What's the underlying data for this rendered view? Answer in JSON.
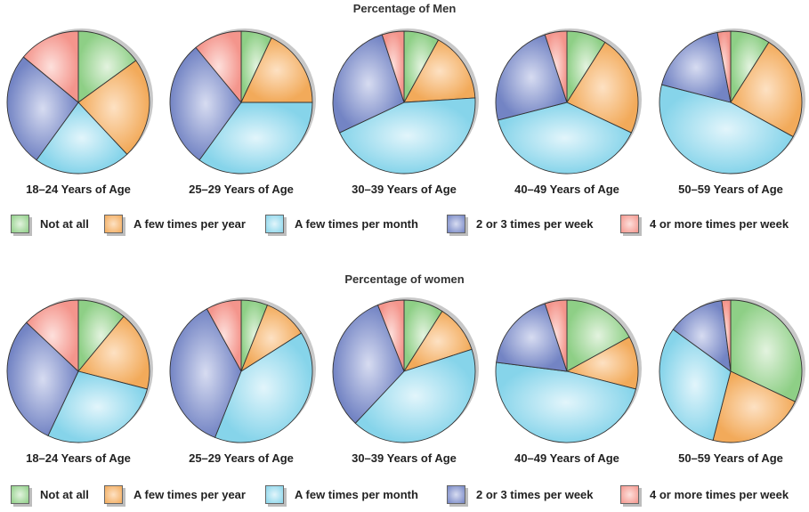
{
  "legend": [
    {
      "label": "Not at all",
      "color": "#8ecf86",
      "edge": "#e3f3df"
    },
    {
      "label": "A few times per year",
      "color": "#f2aa5a",
      "edge": "#fde1c3"
    },
    {
      "label": "A few times per month",
      "color": "#86d4ea",
      "edge": "#e2f5fb"
    },
    {
      "label": "2 or 3 times per week",
      "color": "#7384c4",
      "edge": "#d7dcf1"
    },
    {
      "label": "4 or more times per week",
      "color": "#f4958c",
      "edge": "#fde0dc"
    }
  ],
  "chart_data": [
    {
      "type": "pie",
      "title": "Percentage of Men",
      "legend": [
        "Not at all",
        "A few times per year",
        "A few times per month",
        "2 or 3 times per week",
        "4 or more times per week"
      ],
      "pies": [
        {
          "label": "18–24 Years of Age",
          "values": [
            15,
            23,
            22,
            26,
            14
          ]
        },
        {
          "label": "25–29 Years of Age",
          "values": [
            7,
            18,
            35,
            29,
            11
          ]
        },
        {
          "label": "30–39 Years of Age",
          "values": [
            8,
            16,
            44,
            27,
            5
          ]
        },
        {
          "label": "40–49 Years of Age",
          "values": [
            9,
            23,
            39,
            24,
            5
          ]
        },
        {
          "label": "50–59 Years of Age",
          "values": [
            9,
            24,
            46,
            18,
            3
          ]
        }
      ]
    },
    {
      "type": "pie",
      "title": "Percentage of women",
      "legend": [
        "Not at all",
        "A few times per year",
        "A few times per month",
        "2 or 3 times per week",
        "4 or more times per week"
      ],
      "pies": [
        {
          "label": "18–24 Years of Age",
          "values": [
            11,
            18,
            28,
            30,
            13
          ]
        },
        {
          "label": "25–29 Years of Age",
          "values": [
            6,
            10,
            40,
            36,
            8
          ]
        },
        {
          "label": "30–39 Years of Age",
          "values": [
            9,
            11,
            42,
            32,
            6
          ]
        },
        {
          "label": "40–49 Years of Age",
          "values": [
            17,
            12,
            48,
            18,
            5
          ]
        },
        {
          "label": "50–59 Years of Age",
          "values": [
            32,
            22,
            31,
            13,
            2
          ]
        }
      ]
    }
  ]
}
